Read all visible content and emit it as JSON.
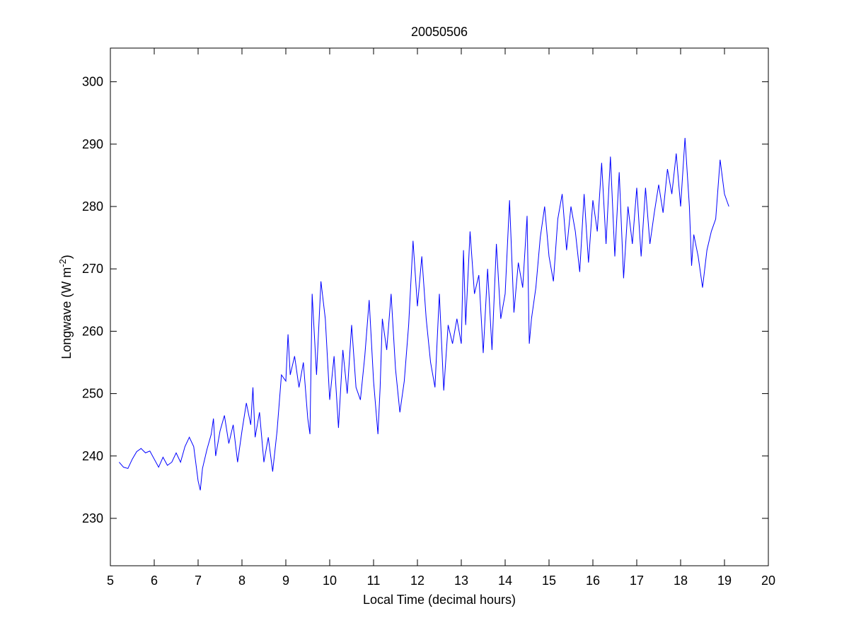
{
  "chart_data": {
    "type": "line",
    "title": "20050506",
    "xlabel": "Local Time (decimal hours)",
    "ylabel_parts": [
      "Longwave (W m",
      "-2",
      ")"
    ],
    "xlim": [
      5,
      20
    ],
    "xticks": [
      5,
      6,
      7,
      8,
      9,
      10,
      11,
      12,
      13,
      14,
      15,
      16,
      17,
      18,
      19,
      20
    ],
    "ylim": [
      222.4,
      305.4
    ],
    "yticks": [
      230,
      240,
      250,
      260,
      270,
      280,
      290,
      300
    ],
    "box": true,
    "x": [
      5.2,
      5.3,
      5.4,
      5.5,
      5.6,
      5.7,
      5.8,
      5.9,
      6.0,
      6.1,
      6.2,
      6.3,
      6.4,
      6.5,
      6.6,
      6.7,
      6.8,
      6.9,
      7.0,
      7.05,
      7.1,
      7.2,
      7.3,
      7.35,
      7.4,
      7.5,
      7.6,
      7.7,
      7.8,
      7.9,
      8.0,
      8.1,
      8.2,
      8.25,
      8.3,
      8.4,
      8.5,
      8.6,
      8.7,
      8.8,
      8.9,
      9.0,
      9.05,
      9.1,
      9.2,
      9.3,
      9.4,
      9.5,
      9.55,
      9.6,
      9.7,
      9.8,
      9.9,
      10.0,
      10.1,
      10.2,
      10.3,
      10.4,
      10.5,
      10.6,
      10.7,
      10.8,
      10.9,
      11.0,
      11.1,
      11.15,
      11.2,
      11.3,
      11.4,
      11.5,
      11.6,
      11.7,
      11.8,
      11.9,
      12.0,
      12.1,
      12.2,
      12.3,
      12.4,
      12.5,
      12.6,
      12.7,
      12.8,
      12.9,
      13.0,
      13.05,
      13.1,
      13.2,
      13.3,
      13.4,
      13.5,
      13.6,
      13.7,
      13.8,
      13.9,
      14.0,
      14.1,
      14.2,
      14.3,
      14.4,
      14.5,
      14.55,
      14.6,
      14.7,
      14.8,
      14.9,
      15.0,
      15.1,
      15.2,
      15.3,
      15.4,
      15.5,
      15.6,
      15.7,
      15.8,
      15.9,
      16.0,
      16.1,
      16.2,
      16.3,
      16.4,
      16.5,
      16.6,
      16.7,
      16.8,
      16.9,
      17.0,
      17.1,
      17.2,
      17.3,
      17.4,
      17.5,
      17.6,
      17.7,
      17.8,
      17.9,
      18.0,
      18.1,
      18.2,
      18.25,
      18.3,
      18.4,
      18.5,
      18.6,
      18.7,
      18.8,
      18.9,
      19.0,
      19.1
    ],
    "series": [
      {
        "name": "Longwave",
        "color": "#0000ff",
        "values": [
          239,
          238.2,
          238,
          239.5,
          240.7,
          241.2,
          240.5,
          240.8,
          239.5,
          238.2,
          239.8,
          238.5,
          239,
          240.5,
          239,
          241.5,
          243,
          241.5,
          236,
          234.5,
          238,
          241,
          243.5,
          246,
          240,
          244,
          246.5,
          242,
          245,
          239,
          244,
          248.5,
          245,
          251,
          243,
          247,
          239,
          243,
          237.5,
          244,
          253,
          252,
          259.5,
          253,
          256,
          251,
          255,
          246,
          243.5,
          266,
          253,
          268,
          262,
          249,
          256,
          244.5,
          257,
          250,
          261,
          251,
          249,
          256,
          265,
          252,
          243.5,
          251,
          262,
          257,
          266,
          254,
          247,
          252,
          261,
          274.5,
          264,
          272,
          262,
          255,
          251,
          266,
          250.5,
          261,
          258,
          262,
          258,
          273,
          261,
          276,
          266,
          269,
          256.5,
          270,
          257,
          274,
          262,
          266,
          281,
          263,
          271,
          267,
          278.5,
          258,
          262,
          267,
          275,
          280,
          272,
          268,
          278,
          282,
          273,
          280,
          276,
          269.5,
          282,
          271,
          281,
          276,
          287,
          274,
          288,
          272,
          285.5,
          268.5,
          280,
          274,
          283,
          272,
          283,
          274,
          279,
          283.5,
          279,
          286,
          282,
          288.5,
          280,
          291,
          280,
          270.5,
          275.5,
          272,
          267,
          273,
          276,
          278,
          287.5,
          282,
          280
        ]
      }
    ]
  }
}
